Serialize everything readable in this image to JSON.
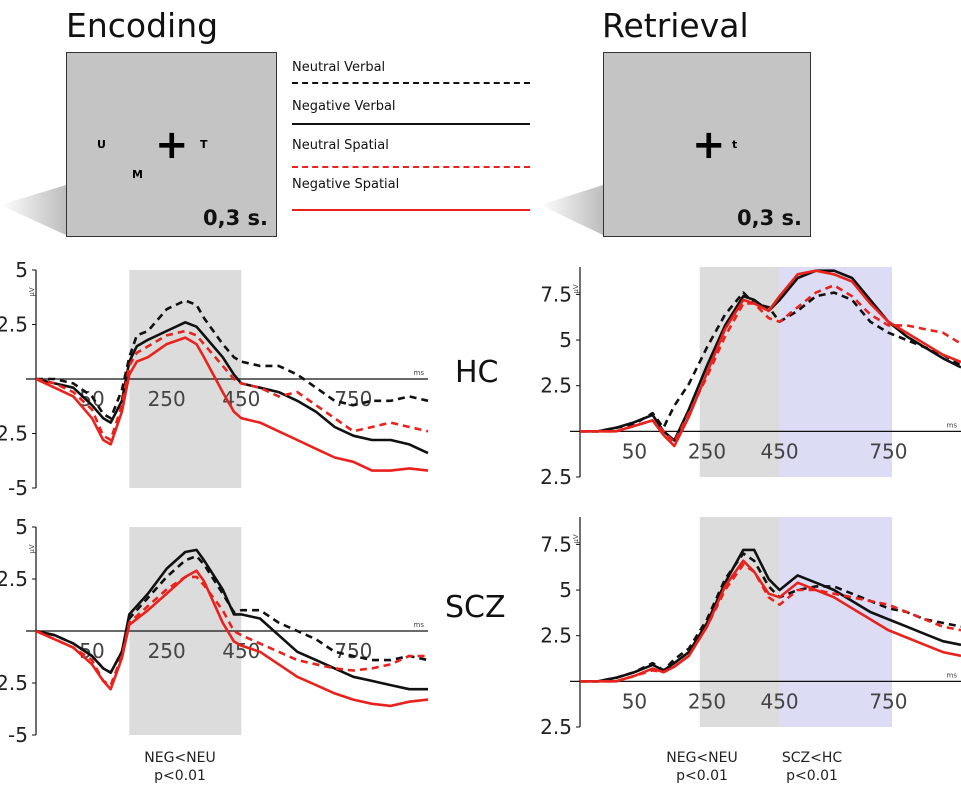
{
  "titles": {
    "encoding": "Encoding",
    "retrieval": "Retrieval"
  },
  "stimuli": {
    "encoding": {
      "letters": [
        "U",
        "T",
        "M"
      ],
      "cross": "+",
      "duration": "0,3 s."
    },
    "retrieval": {
      "letters": [
        "t"
      ],
      "cross": "+",
      "duration": "0,3 s."
    }
  },
  "legend": [
    {
      "label": "Neutral Verbal",
      "color": "#111111",
      "dashed": true
    },
    {
      "label": "Negative Verbal",
      "color": "#111111",
      "dashed": false
    },
    {
      "label": "Neutral Spatial",
      "color": "#e8221c",
      "dashed": true
    },
    {
      "label": "Negative Spatial",
      "color": "#e8221c",
      "dashed": false
    }
  ],
  "groups": {
    "hc": "HC",
    "scz": "SCZ"
  },
  "stats": {
    "encoding": [
      {
        "line1": "NEG<NEU",
        "line2": "p<0.01"
      }
    ],
    "retrieval": [
      {
        "line1": "NEG<NEU",
        "line2": "p<0.01"
      },
      {
        "line1": "SCZ<HC",
        "line2": "p<0.01"
      }
    ]
  },
  "colors": {
    "verbal": "#111111",
    "spatial": "#e8221c",
    "gray_window": "#dcdcdc",
    "blue_window": "#dcdcf5"
  },
  "chart_data": [
    {
      "type": "line",
      "panel": "Encoding HC",
      "xunit": "ms",
      "yunit": "µV",
      "xlim": [
        -100,
        950
      ],
      "ylim": [
        -5,
        5
      ],
      "xticks": [
        50,
        250,
        450,
        750
      ],
      "yticks": [
        5,
        2.5,
        -2.5,
        -5
      ],
      "ytick_labels": [
        "5",
        "2.5",
        "-2.5",
        "-5"
      ],
      "windows": [
        {
          "from": 150,
          "to": 450,
          "color": "gray"
        }
      ],
      "series": [
        {
          "name": "Neutral Verbal",
          "x": [
            -100,
            -50,
            0,
            50,
            80,
            100,
            130,
            150,
            170,
            200,
            250,
            300,
            330,
            350,
            400,
            430,
            450,
            500,
            550,
            600,
            650,
            700,
            750,
            800,
            850,
            900,
            950
          ],
          "y": [
            0,
            0,
            -0.2,
            -0.8,
            -1.6,
            -1.8,
            -0.5,
            1.0,
            2.0,
            2.2,
            3.2,
            3.6,
            3.4,
            2.8,
            1.6,
            1.0,
            0.8,
            0.6,
            0.6,
            0.2,
            -0.4,
            -1.0,
            -1.2,
            -1.0,
            -1.0,
            -0.8,
            -1.0
          ]
        },
        {
          "name": "Negative Verbal",
          "x": [
            -100,
            -50,
            0,
            50,
            80,
            100,
            130,
            150,
            170,
            200,
            250,
            300,
            330,
            350,
            400,
            430,
            450,
            500,
            550,
            600,
            650,
            700,
            750,
            800,
            850,
            900,
            950
          ],
          "y": [
            0,
            -0.2,
            -0.4,
            -1.2,
            -1.8,
            -2.0,
            -1.0,
            0.8,
            1.5,
            1.8,
            2.2,
            2.6,
            2.4,
            2.0,
            1.0,
            0.2,
            -0.2,
            -0.4,
            -0.6,
            -1.0,
            -1.5,
            -2.2,
            -2.6,
            -2.8,
            -2.8,
            -3.0,
            -3.4
          ]
        },
        {
          "name": "Neutral Spatial",
          "x": [
            -100,
            -50,
            0,
            50,
            80,
            100,
            130,
            150,
            170,
            200,
            250,
            300,
            330,
            350,
            400,
            430,
            450,
            500,
            550,
            600,
            650,
            700,
            750,
            800,
            850,
            900,
            950
          ],
          "y": [
            0,
            -0.2,
            -0.6,
            -1.4,
            -2.6,
            -2.8,
            -1.2,
            0.6,
            1.2,
            1.5,
            2.0,
            2.2,
            2.0,
            1.6,
            0.6,
            0,
            -0.2,
            -0.4,
            -0.8,
            -0.6,
            -1.2,
            -1.8,
            -2.4,
            -2.2,
            -2.0,
            -2.2,
            -2.4
          ]
        },
        {
          "name": "Negative Spatial",
          "x": [
            -100,
            -50,
            0,
            50,
            80,
            100,
            130,
            150,
            170,
            200,
            250,
            300,
            330,
            350,
            400,
            430,
            450,
            500,
            550,
            600,
            650,
            700,
            750,
            800,
            850,
            900,
            950
          ],
          "y": [
            0,
            -0.4,
            -0.8,
            -1.8,
            -2.8,
            -3.0,
            -1.5,
            0.2,
            0.8,
            1.0,
            1.6,
            1.9,
            1.6,
            1.0,
            -0.6,
            -1.5,
            -1.8,
            -2.0,
            -2.4,
            -2.8,
            -3.2,
            -3.6,
            -3.8,
            -4.2,
            -4.2,
            -4.1,
            -4.2
          ]
        }
      ]
    },
    {
      "type": "line",
      "panel": "Encoding SCZ",
      "xunit": "ms",
      "yunit": "µV",
      "xlim": [
        -100,
        950
      ],
      "ylim": [
        -5,
        5
      ],
      "xticks": [
        50,
        250,
        450,
        750
      ],
      "yticks": [
        5,
        2.5,
        -2.5,
        -5
      ],
      "ytick_labels": [
        "5",
        "2.5",
        "-2.5",
        "-5"
      ],
      "windows": [
        {
          "from": 150,
          "to": 450,
          "color": "gray"
        }
      ],
      "series": [
        {
          "name": "Neutral Verbal",
          "x": [
            -100,
            -50,
            0,
            50,
            80,
            100,
            130,
            150,
            200,
            250,
            300,
            330,
            350,
            400,
            430,
            450,
            500,
            550,
            600,
            650,
            700,
            750,
            800,
            850,
            900,
            950
          ],
          "y": [
            0,
            -0.2,
            -0.6,
            -1.2,
            -1.8,
            -2.0,
            -1.0,
            0.6,
            1.6,
            2.6,
            3.4,
            3.6,
            3.2,
            1.8,
            0.9,
            1.0,
            1.0,
            0.4,
            0,
            -0.4,
            -1.0,
            -1.2,
            -1.4,
            -1.4,
            -1.2,
            -1.4
          ]
        },
        {
          "name": "Negative Verbal",
          "x": [
            -100,
            -50,
            0,
            50,
            80,
            100,
            130,
            150,
            200,
            250,
            300,
            330,
            350,
            400,
            430,
            450,
            500,
            550,
            600,
            650,
            700,
            750,
            800,
            850,
            900,
            950
          ],
          "y": [
            0,
            -0.2,
            -0.6,
            -1.2,
            -1.8,
            -2.0,
            -1.0,
            0.8,
            1.8,
            3.0,
            3.8,
            3.9,
            3.4,
            2.0,
            0.8,
            0.8,
            0.6,
            -0.2,
            -1.0,
            -1.4,
            -1.8,
            -2.2,
            -2.4,
            -2.6,
            -2.8,
            -2.8
          ]
        },
        {
          "name": "Neutral Spatial",
          "x": [
            -100,
            -50,
            0,
            50,
            80,
            100,
            130,
            150,
            200,
            250,
            300,
            330,
            350,
            400,
            430,
            450,
            500,
            550,
            600,
            650,
            700,
            750,
            800,
            850,
            900,
            950
          ],
          "y": [
            0,
            -0.4,
            -0.8,
            -1.4,
            -2.4,
            -2.6,
            -1.2,
            0.4,
            1.2,
            2.0,
            2.6,
            2.6,
            2.2,
            1.0,
            0,
            -0.2,
            -0.6,
            -1.0,
            -1.4,
            -1.6,
            -1.8,
            -1.9,
            -1.8,
            -1.6,
            -1.2,
            -1.2
          ]
        },
        {
          "name": "Negative Spatial",
          "x": [
            -100,
            -50,
            0,
            50,
            80,
            100,
            130,
            150,
            200,
            250,
            300,
            330,
            350,
            400,
            430,
            450,
            500,
            550,
            600,
            650,
            700,
            750,
            800,
            850,
            900,
            950
          ],
          "y": [
            0,
            -0.4,
            -0.8,
            -1.6,
            -2.4,
            -2.8,
            -1.3,
            0.3,
            1.0,
            1.8,
            2.6,
            2.9,
            2.4,
            0.4,
            -0.5,
            -0.7,
            -1.0,
            -1.6,
            -2.2,
            -2.6,
            -3.0,
            -3.3,
            -3.5,
            -3.6,
            -3.4,
            -3.3
          ]
        }
      ]
    },
    {
      "type": "line",
      "panel": "Retrieval HC",
      "xunit": "ms",
      "yunit": "µV",
      "xlim": [
        -100,
        950
      ],
      "ylim": [
        -2.5,
        9
      ],
      "xticks": [
        50,
        250,
        450,
        750
      ],
      "yticks": [
        7.5,
        5,
        2.5,
        -2.5
      ],
      "ytick_labels": [
        "7.5",
        "5",
        "2.5",
        "-2.5"
      ],
      "windows": [
        {
          "from": 230,
          "to": 450,
          "color": "gray"
        },
        {
          "from": 450,
          "to": 760,
          "color": "blue"
        }
      ],
      "series": [
        {
          "name": "Neutral Verbal",
          "x": [
            -100,
            -50,
            0,
            50,
            100,
            130,
            160,
            200,
            250,
            300,
            350,
            380,
            420,
            450,
            500,
            550,
            600,
            650,
            700,
            750,
            800,
            850,
            900,
            950
          ],
          "y": [
            0,
            0,
            0.2,
            0.4,
            1.0,
            0.2,
            1.4,
            2.6,
            4.6,
            6.4,
            7.6,
            7.0,
            6.8,
            6.0,
            6.6,
            7.4,
            7.6,
            7.2,
            6.0,
            5.4,
            5.0,
            4.6,
            4.2,
            3.6
          ]
        },
        {
          "name": "Negative Verbal",
          "x": [
            -100,
            -50,
            0,
            50,
            100,
            130,
            160,
            200,
            250,
            300,
            350,
            380,
            420,
            450,
            500,
            550,
            600,
            650,
            700,
            750,
            800,
            850,
            900,
            950
          ],
          "y": [
            0,
            0,
            0.2,
            0.5,
            0.9,
            0,
            -0.5,
            1.2,
            3.6,
            5.8,
            7.4,
            7.2,
            6.6,
            7.2,
            8.4,
            8.8,
            8.8,
            8.4,
            7.2,
            6.0,
            5.2,
            4.6,
            4.0,
            3.5
          ]
        },
        {
          "name": "Neutral Spatial",
          "x": [
            -100,
            -50,
            0,
            50,
            100,
            130,
            160,
            200,
            250,
            300,
            350,
            380,
            420,
            450,
            500,
            550,
            600,
            650,
            700,
            750,
            800,
            850,
            900,
            950
          ],
          "y": [
            0,
            0,
            0,
            0.3,
            0.6,
            0,
            -0.6,
            1.0,
            3.0,
            5.2,
            7.0,
            7.0,
            6.2,
            6.0,
            6.8,
            7.6,
            8.0,
            7.4,
            6.4,
            5.8,
            5.8,
            5.6,
            5.4,
            4.8
          ]
        },
        {
          "name": "Negative Spatial",
          "x": [
            -100,
            -50,
            0,
            50,
            100,
            130,
            160,
            200,
            250,
            300,
            350,
            380,
            420,
            450,
            500,
            550,
            600,
            650,
            700,
            750,
            800,
            850,
            900,
            950
          ],
          "y": [
            0,
            0,
            0,
            0.3,
            0.6,
            -0.2,
            -0.8,
            0.8,
            3.2,
            5.6,
            7.2,
            7.0,
            6.6,
            7.4,
            8.6,
            8.8,
            8.6,
            8.2,
            7.0,
            6.0,
            5.4,
            4.8,
            4.2,
            3.8
          ]
        }
      ]
    },
    {
      "type": "line",
      "panel": "Retrieval SCZ",
      "xunit": "ms",
      "yunit": "µV",
      "xlim": [
        -100,
        950
      ],
      "ylim": [
        -2.5,
        9
      ],
      "xticks": [
        50,
        250,
        450,
        750
      ],
      "yticks": [
        7.5,
        5,
        2.5,
        -2.5
      ],
      "ytick_labels": [
        "7.5",
        "5",
        "2.5",
        "-2.5"
      ],
      "windows": [
        {
          "from": 230,
          "to": 450,
          "color": "gray"
        },
        {
          "from": 450,
          "to": 760,
          "color": "blue"
        }
      ],
      "series": [
        {
          "name": "Neutral Verbal",
          "x": [
            -100,
            -50,
            0,
            50,
            100,
            130,
            160,
            200,
            250,
            300,
            350,
            380,
            420,
            450,
            500,
            550,
            600,
            650,
            700,
            750,
            800,
            850,
            900,
            950
          ],
          "y": [
            0,
            0,
            0.2,
            0.5,
            1.0,
            0.6,
            1.2,
            1.8,
            3.4,
            5.6,
            7.0,
            6.6,
            5.2,
            4.6,
            5.0,
            5.2,
            5.2,
            4.8,
            4.4,
            4.0,
            3.8,
            3.4,
            3.2,
            3.0
          ]
        },
        {
          "name": "Negative Verbal",
          "x": [
            -100,
            -50,
            0,
            50,
            100,
            130,
            160,
            200,
            250,
            300,
            350,
            380,
            420,
            450,
            500,
            550,
            600,
            650,
            700,
            750,
            800,
            850,
            900,
            950
          ],
          "y": [
            0,
            0,
            0.2,
            0.5,
            0.9,
            0.6,
            1.0,
            1.6,
            3.2,
            5.4,
            7.2,
            7.2,
            5.6,
            5.0,
            5.8,
            5.4,
            5.0,
            4.4,
            3.8,
            3.4,
            3.0,
            2.6,
            2.2,
            2.0
          ]
        },
        {
          "name": "Neutral Spatial",
          "x": [
            -100,
            -50,
            0,
            50,
            100,
            130,
            160,
            200,
            250,
            300,
            350,
            380,
            420,
            450,
            500,
            550,
            600,
            650,
            700,
            750,
            800,
            850,
            900,
            950
          ],
          "y": [
            0,
            0,
            0,
            0.3,
            0.6,
            0.5,
            0.8,
            1.4,
            3.0,
            5.0,
            6.4,
            6.0,
            4.6,
            4.2,
            5.0,
            5.0,
            4.8,
            4.6,
            4.4,
            4.2,
            3.8,
            3.4,
            3.0,
            2.8
          ]
        },
        {
          "name": "Negative Spatial",
          "x": [
            -100,
            -50,
            0,
            50,
            100,
            130,
            160,
            200,
            250,
            300,
            350,
            380,
            420,
            450,
            500,
            550,
            600,
            650,
            700,
            750,
            800,
            850,
            900,
            950
          ],
          "y": [
            0,
            0,
            0,
            0.3,
            0.7,
            0.5,
            0.8,
            1.4,
            3.0,
            5.2,
            6.6,
            6.0,
            4.8,
            4.6,
            5.4,
            5.0,
            4.6,
            4.0,
            3.4,
            2.8,
            2.4,
            2.0,
            1.6,
            1.4
          ]
        }
      ]
    }
  ]
}
